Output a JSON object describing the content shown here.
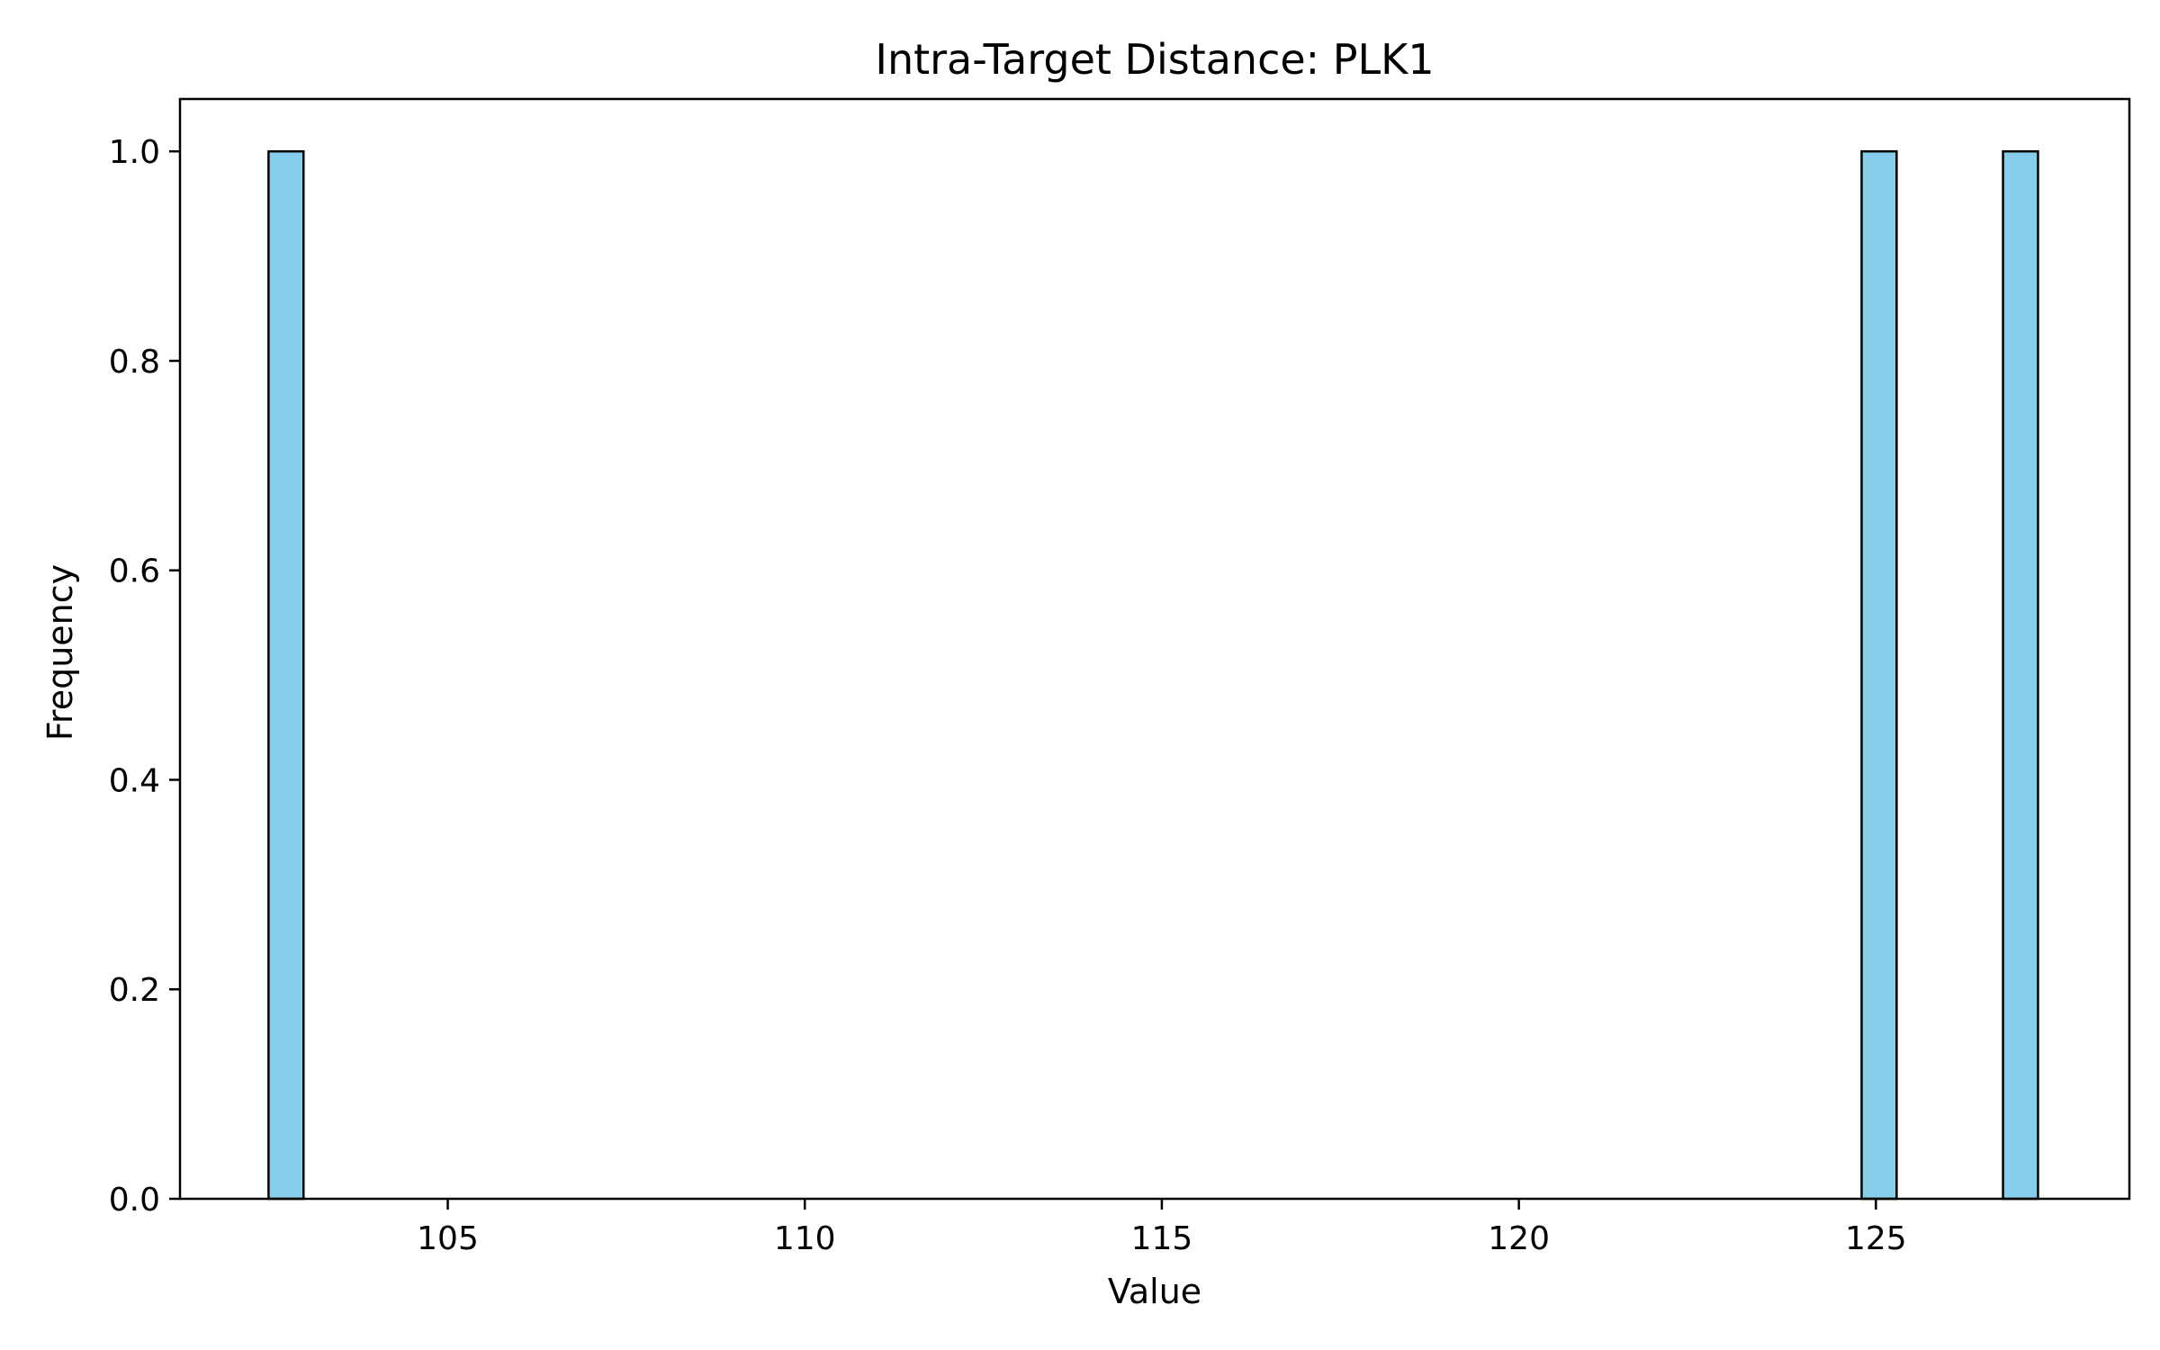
{
  "chart_data": {
    "type": "bar",
    "title": "Intra-Target Distance: PLK1",
    "xlabel": "Value",
    "ylabel": "Frequency",
    "xlim": [
      101.25,
      128.55
    ],
    "ylim": [
      0,
      1.05
    ],
    "x_ticks": [
      105,
      110,
      115,
      120,
      125
    ],
    "y_ticks": [
      0.0,
      0.2,
      0.4,
      0.6,
      0.8,
      1.0
    ],
    "x_tick_labels": [
      "105",
      "110",
      "115",
      "120",
      "125"
    ],
    "y_tick_labels": [
      "0.0",
      "0.2",
      "0.4",
      "0.6",
      "0.8",
      "1.0"
    ],
    "bin_width": 0.49,
    "bins": [
      {
        "x_start": 102.49,
        "x_end": 102.98,
        "count": 1
      },
      {
        "x_start": 124.8,
        "x_end": 125.29,
        "count": 1
      },
      {
        "x_start": 126.78,
        "x_end": 127.27,
        "count": 1
      }
    ],
    "bar_color": "#87CEEB",
    "edge_color": "#000000",
    "grid": false
  }
}
